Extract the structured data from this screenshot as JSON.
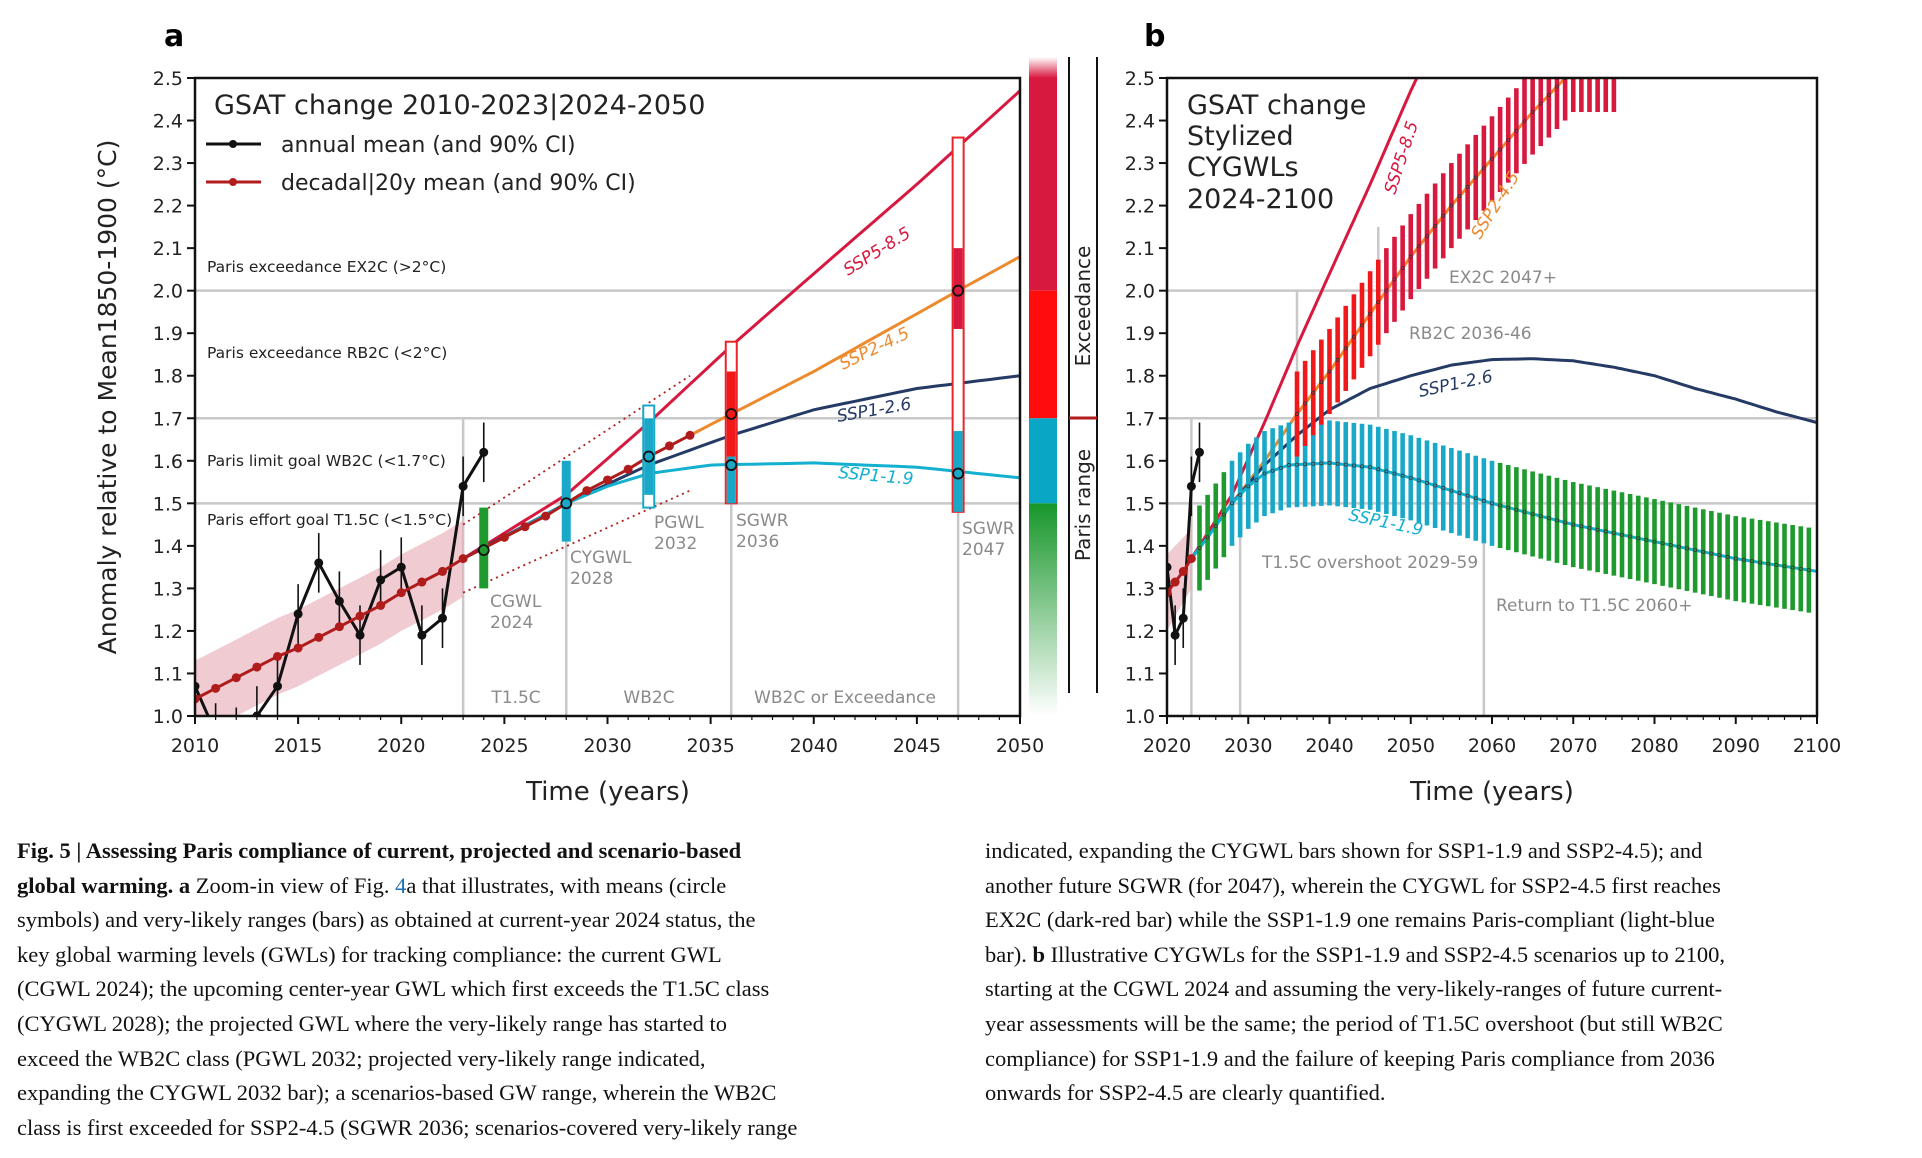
{
  "chart_data": [
    {
      "panel": "a",
      "type": "line",
      "title": "GSAT change 2010-2023|2024-2050",
      "xlabel": "Time (years)",
      "ylabel": "Anomaly relative to Mean1850-1900 (°C)",
      "xlim": [
        2010,
        2050
      ],
      "ylim": [
        1.0,
        2.5
      ],
      "xticks": [
        "2010",
        "2015",
        "2020",
        "2025",
        "2030",
        "2035",
        "2040",
        "2045",
        "2050"
      ],
      "yticks": [
        "1.0",
        "1.1",
        "1.2",
        "1.3",
        "1.4",
        "1.5",
        "1.6",
        "1.7",
        "1.8",
        "1.9",
        "2.0",
        "2.1",
        "2.2",
        "2.3",
        "2.4",
        "2.5"
      ],
      "legend": [
        {
          "label": "annual mean (and 90% CI)",
          "color": "#111111"
        },
        {
          "label": "decadal|20y mean (and 90% CI)",
          "color": "#b01c1c"
        }
      ],
      "thresholds": [
        {
          "label": "Paris exceedance EX2C (>2°C)",
          "value": 2.0
        },
        {
          "label": "Paris exceedance RB2C (<2°C)",
          "value": 1.7
        },
        {
          "label": "Paris limit goal WB2C (<1.7°C)",
          "value": 1.5
        },
        {
          "label": "Paris effort goal T1.5C (<1.5°C)",
          "value": 1.0
        }
      ],
      "annual_mean": {
        "years": [
          2010,
          2011,
          2012,
          2013,
          2014,
          2015,
          2016,
          2017,
          2018,
          2019,
          2020,
          2021,
          2022,
          2023,
          2024
        ],
        "values": [
          1.07,
          0.96,
          0.95,
          1.0,
          1.07,
          1.24,
          1.36,
          1.27,
          1.19,
          1.32,
          1.35,
          1.19,
          1.23,
          1.54,
          1.62
        ],
        "ci": 0.07
      },
      "decadal_mean": {
        "years": [
          2010,
          2011,
          2012,
          2013,
          2014,
          2015,
          2016,
          2017,
          2018,
          2019,
          2020,
          2021,
          2022,
          2023,
          2024,
          2025,
          2026,
          2027,
          2028,
          2029,
          2030,
          2031,
          2032,
          2033,
          2034
        ],
        "values": [
          1.04,
          1.065,
          1.09,
          1.115,
          1.14,
          1.16,
          1.185,
          1.21,
          1.235,
          1.26,
          1.29,
          1.315,
          1.34,
          1.37,
          1.395,
          1.42,
          1.445,
          1.47,
          1.5,
          1.53,
          1.555,
          1.58,
          1.61,
          1.635,
          1.66
        ],
        "ci_band": 0.09,
        "ci_projection": {
          "years": [
            2023,
            2034
          ],
          "upper": [
            1.45,
            1.8
          ],
          "lower": [
            1.29,
            1.53
          ]
        }
      },
      "scenarios": [
        {
          "name": "SSP5-8.5",
          "color": "#d7193f",
          "x": [
            2023,
            2028,
            2032,
            2036,
            2040,
            2045,
            2050
          ],
          "y": [
            1.37,
            1.52,
            1.69,
            1.87,
            2.04,
            2.25,
            2.47
          ]
        },
        {
          "name": "SSP2-4.5",
          "color": "#ee8a2e",
          "x": [
            2034,
            2036,
            2040,
            2047,
            2050
          ],
          "y": [
            1.66,
            1.71,
            1.81,
            2.0,
            2.08
          ]
        },
        {
          "name": "SSP1-2.6",
          "color": "#253a64",
          "x": [
            2023,
            2028,
            2032,
            2036,
            2040,
            2045,
            2050
          ],
          "y": [
            1.37,
            1.5,
            1.59,
            1.66,
            1.72,
            1.77,
            1.8
          ]
        },
        {
          "name": "SSP1-1.9",
          "color": "#14b0d0",
          "x": [
            2023,
            2025,
            2028,
            2030,
            2032,
            2035,
            2040,
            2045,
            2050
          ],
          "y": [
            1.37,
            1.42,
            1.5,
            1.54,
            1.57,
            1.59,
            1.595,
            1.585,
            1.56
          ]
        }
      ],
      "bars": [
        {
          "label": "CGWL",
          "year_label": "2024",
          "year": 2024,
          "outline": null,
          "segments": [
            {
              "lo": 1.3,
              "hi": 1.49,
              "color": "#1f9a2e"
            }
          ],
          "means": [
            1.39
          ]
        },
        {
          "label": "CYGWL",
          "year_label": "2028",
          "year": 2028,
          "outline": null,
          "segments": [
            {
              "lo": 1.41,
              "hi": 1.6,
              "color": "#1aa8c8"
            }
          ],
          "means": [
            1.5
          ]
        },
        {
          "label": "PGWL",
          "year_label": "2032",
          "year": 2032,
          "outline": {
            "lo": 1.49,
            "hi": 1.73,
            "color": "#1aa8c8"
          },
          "segments": [
            {
              "lo": 1.52,
              "hi": 1.7,
              "color": "#1aa8c8"
            }
          ],
          "means": [
            1.61
          ]
        },
        {
          "label": "SGWR",
          "year_label": "2036",
          "year": 2036,
          "outline": {
            "lo": 1.5,
            "hi": 1.88,
            "color": "#e8262a"
          },
          "segments": [
            {
              "lo": 1.5,
              "hi": 1.61,
              "color": "#1aa8c8"
            },
            {
              "lo": 1.61,
              "hi": 1.81,
              "color": "#f01818"
            }
          ],
          "means": [
            1.59,
            1.71
          ]
        },
        {
          "label": "SGWR",
          "year_label": "2047",
          "year": 2047,
          "outline": {
            "lo": 1.48,
            "hi": 2.36,
            "color": "#e8262a"
          },
          "segments": [
            {
              "lo": 1.48,
              "hi": 1.67,
              "color": "#1aa8c8"
            },
            {
              "lo": 1.91,
              "hi": 2.1,
              "color": "#d7193f"
            }
          ],
          "means": [
            1.57,
            2.0
          ]
        }
      ],
      "period_labels": [
        "T1.5C",
        "WB2C",
        "WB2C or Exceedance"
      ],
      "colorbar": {
        "classes": [
          {
            "name": "EX2C",
            "from": 2.0,
            "to": 2.5,
            "color": "#d7193f"
          },
          {
            "name": "RB2C",
            "from": 1.7,
            "to": 2.0,
            "color": "#ff0d0d"
          },
          {
            "name": "WB2C",
            "from": 1.5,
            "to": 1.7,
            "color": "#0aa6c6"
          },
          {
            "name": "T1.5C",
            "from": 1.0,
            "to": 1.5,
            "color": "#16962a"
          }
        ],
        "labels": [
          "Exceedance",
          "Paris range"
        ]
      }
    },
    {
      "panel": "b",
      "type": "line",
      "title_lines": [
        "GSAT change",
        "Stylized",
        "CYGWLs",
        "2024-2100"
      ],
      "xlabel": "Time (years)",
      "xlim": [
        2020,
        2100
      ],
      "ylim": [
        1.0,
        2.5
      ],
      "xticks": [
        "2020",
        "2030",
        "2040",
        "2050",
        "2060",
        "2070",
        "2080",
        "2090",
        "2100"
      ],
      "yticks": [
        "1.0",
        "1.1",
        "1.2",
        "1.3",
        "1.4",
        "1.5",
        "1.6",
        "1.7",
        "1.8",
        "1.9",
        "2.0",
        "2.1",
        "2.2",
        "2.3",
        "2.4",
        "2.5"
      ],
      "annual_mean": {
        "years": [
          2020,
          2021,
          2022,
          2023,
          2024
        ],
        "values": [
          1.35,
          1.19,
          1.23,
          1.54,
          1.62
        ],
        "ci": 0.07
      },
      "decadal_mean": {
        "years": [
          2020,
          2021,
          2022,
          2023
        ],
        "values": [
          1.29,
          1.315,
          1.34,
          1.37
        ]
      },
      "scenarios": [
        {
          "name": "SSP5-8.5",
          "color": "#d7193f",
          "x": [
            2023,
            2028,
            2032,
            2036,
            2040,
            2045,
            2050,
            2052
          ],
          "y": [
            1.37,
            1.52,
            1.69,
            1.87,
            2.04,
            2.25,
            2.47,
            2.55
          ]
        },
        {
          "name": "SSP2-4.5",
          "color": "#ee8a2e",
          "x": [
            2023,
            2028,
            2032,
            2036,
            2040,
            2047,
            2050,
            2055,
            2060,
            2065,
            2070
          ],
          "y": [
            1.37,
            1.5,
            1.6,
            1.71,
            1.81,
            2.0,
            2.08,
            2.2,
            2.31,
            2.42,
            2.52
          ]
        },
        {
          "name": "SSP1-2.6",
          "color": "#253a64",
          "x": [
            2023,
            2028,
            2032,
            2036,
            2040,
            2045,
            2050,
            2055,
            2060,
            2065,
            2070,
            2075,
            2080,
            2085,
            2090,
            2095,
            2100
          ],
          "y": [
            1.37,
            1.5,
            1.59,
            1.66,
            1.72,
            1.77,
            1.8,
            1.825,
            1.838,
            1.84,
            1.835,
            1.82,
            1.8,
            1.77,
            1.745,
            1.715,
            1.69
          ]
        },
        {
          "name": "SSP1-1.9",
          "color": "#14b0d0",
          "x": [
            2023,
            2025,
            2028,
            2030,
            2032,
            2035,
            2040,
            2045,
            2050,
            2055,
            2060,
            2070,
            2080,
            2090,
            2100
          ],
          "y": [
            1.37,
            1.42,
            1.5,
            1.54,
            1.57,
            1.59,
            1.595,
            1.585,
            1.56,
            1.53,
            1.5,
            1.45,
            1.41,
            1.37,
            1.34
          ]
        }
      ],
      "cygwl_bars": [
        {
          "scenario": "SSP1-1.9",
          "from": 2024,
          "to": 2099,
          "halfwidth": 0.1
        },
        {
          "scenario": "SSP2-4.5",
          "from": 2036,
          "to": 2075,
          "halfwidth": 0.1
        }
      ],
      "class_colors": {
        "T1.5C": "#1f9a2e",
        "WB2C": "#1aa8c8",
        "RB2C": "#f01818",
        "EX2C": "#d7193f"
      },
      "annotations": [
        "EX2C 2047+",
        "RB2C 2036-46",
        "T1.5C overshoot 2029-59",
        "Return to T1.5C 2060+"
      ]
    }
  ],
  "panel_labels": {
    "a": "a",
    "b": "b"
  },
  "caption": {
    "left": [
      [
        {
          "t": "Fig. 5 | Assessing Paris compliance of current, projected and scenario-based",
          "b": true
        }
      ],
      [
        {
          "t": "global warming. a",
          "b": true
        },
        {
          "t": " Zoom-in view of Fig. "
        },
        {
          "t": "4",
          "ref": true
        },
        {
          "t": "a that illustrates, with means (circle"
        }
      ],
      [
        {
          "t": "symbols) and very-likely ranges (bars) as obtained at current-year 2024 status, the"
        }
      ],
      [
        {
          "t": "key global warming levels (GWLs) for tracking compliance: the current GWL"
        }
      ],
      [
        {
          "t": "(CGWL 2024); the upcoming center-year GWL which first exceeds the T1.5C class"
        }
      ],
      [
        {
          "t": "(CYGWL 2028); the projected GWL where the very-likely range has started to"
        }
      ],
      [
        {
          "t": "exceed the WB2C class (PGWL 2032; projected very-likely range indicated,"
        }
      ],
      [
        {
          "t": "expanding the CYGWL 2032 bar); a scenarios-based GW range, wherein the WB2C"
        }
      ],
      [
        {
          "t": "class is first exceeded for SSP2-4.5 (SGWR 2036; scenarios-covered very-likely range"
        }
      ]
    ],
    "right": [
      [
        {
          "t": "indicated, expanding the CYGWL bars shown for SSP1-1.9 and SSP2-4.5); and"
        }
      ],
      [
        {
          "t": "another future SGWR (for 2047), wherein the CYGWL for SSP2-4.5 first reaches"
        }
      ],
      [
        {
          "t": "EX2C (dark-red bar) while the SSP1-1.9 one remains Paris-compliant (light-blue"
        }
      ],
      [
        {
          "t": "bar). "
        },
        {
          "t": "b",
          "b": true
        },
        {
          "t": " Illustrative CYGWLs for the SSP1-1.9 and SSP2-4.5 scenarios up to 2100,"
        }
      ],
      [
        {
          "t": "starting at the CGWL 2024 and assuming the very-likely-ranges of future current-"
        }
      ],
      [
        {
          "t": "year assessments will be the same; the period of T1.5C overshoot (but still WB2C"
        }
      ],
      [
        {
          "t": "compliance) for SSP1-1.9 and the failure of keeping Paris compliance from 2036"
        }
      ],
      [
        {
          "t": "onwards for SSP2-4.5 are clearly quantified."
        }
      ]
    ]
  }
}
